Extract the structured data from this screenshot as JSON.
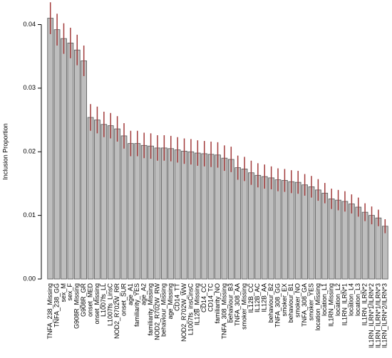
{
  "chart_data": {
    "type": "bar",
    "y_label": "Inclusion Proportion",
    "categories": [
      "TNFA_238_Missing",
      "TNFA_238_GG",
      "sex_M",
      "sex_F",
      "G908R_Missing",
      "G908R_GR",
      "onset_MED",
      "onset_Missing",
      "L1007fs_LL",
      "L1007fs_LinsC",
      "NOD2_R702W_RR",
      "onset_SUR",
      "age_A1",
      "familiarity_YES",
      "age_A2",
      "familiarity_Missing",
      "NOD2_R702W_RW",
      "behaviour_Missing",
      "age_Missing",
      "CD14_TT",
      "NOD2_R702W_WW",
      "L1007fs_insCinsC",
      "IL12B_Missing",
      "CD14_CC",
      "CD14_TC",
      "familiarity_NO",
      "TNFA_308_Missing",
      "behaviour_B3",
      "TNFA_308_AA",
      "smoker_Missing",
      "IL12B_CC",
      "IL12B_AC",
      "IL12B_AA",
      "behaviour_B2",
      "TNFA_308_GG",
      "smoker_EX",
      "behaviour_B1",
      "smoker_NO",
      "TNFA_308_GA",
      "smoker_YES",
      "location_Missing",
      "location_L1",
      "IL1RN_Missing",
      "location_L2",
      "IL1RN_ILRN*1",
      "location_L4",
      "location_L3",
      "IL1RN_ILRN*2",
      "IL1RN_ILRN*1/ILRN*2",
      "IL1RN_ILRN*1/ILRN*3",
      "IL1RN_ILRN*2/ILRN*3"
    ],
    "values": [
      0.041,
      0.0392,
      0.0378,
      0.0371,
      0.036,
      0.0343,
      0.0254,
      0.025,
      0.0243,
      0.0241,
      0.0236,
      0.0225,
      0.0213,
      0.0213,
      0.021,
      0.0209,
      0.0206,
      0.0206,
      0.0205,
      0.0203,
      0.0201,
      0.02,
      0.0198,
      0.0197,
      0.0196,
      0.0195,
      0.019,
      0.0188,
      0.0175,
      0.0173,
      0.0167,
      0.0163,
      0.0161,
      0.0159,
      0.0156,
      0.0155,
      0.0153,
      0.0152,
      0.0148,
      0.0145,
      0.014,
      0.0135,
      0.0126,
      0.0124,
      0.0122,
      0.0118,
      0.0113,
      0.0105,
      0.01,
      0.0096,
      0.0083
    ],
    "errors": [
      0.0025,
      0.0025,
      0.0024,
      0.0024,
      0.0024,
      0.0024,
      0.0021,
      0.0021,
      0.002,
      0.002,
      0.002,
      0.002,
      0.002,
      0.002,
      0.002,
      0.002,
      0.002,
      0.002,
      0.002,
      0.002,
      0.002,
      0.002,
      0.002,
      0.002,
      0.002,
      0.002,
      0.002,
      0.002,
      0.0019,
      0.0019,
      0.0019,
      0.0019,
      0.0019,
      0.0018,
      0.0018,
      0.0018,
      0.0018,
      0.0018,
      0.0017,
      0.0017,
      0.0017,
      0.0016,
      0.0016,
      0.0016,
      0.0016,
      0.0015,
      0.0015,
      0.0014,
      0.0014,
      0.0013,
      0.0011
    ],
    "color": "#bebebe",
    "error_color": "#a23b3b",
    "ylim": [
      0,
      0.0433
    ],
    "yticks": [
      {
        "value": 0,
        "label": "0.00"
      },
      {
        "value": 0.01,
        "label": "0.01"
      },
      {
        "value": 0.02,
        "label": "0.02"
      },
      {
        "value": 0.03,
        "label": "0.03"
      },
      {
        "value": 0.04,
        "label": "0.04"
      }
    ]
  }
}
